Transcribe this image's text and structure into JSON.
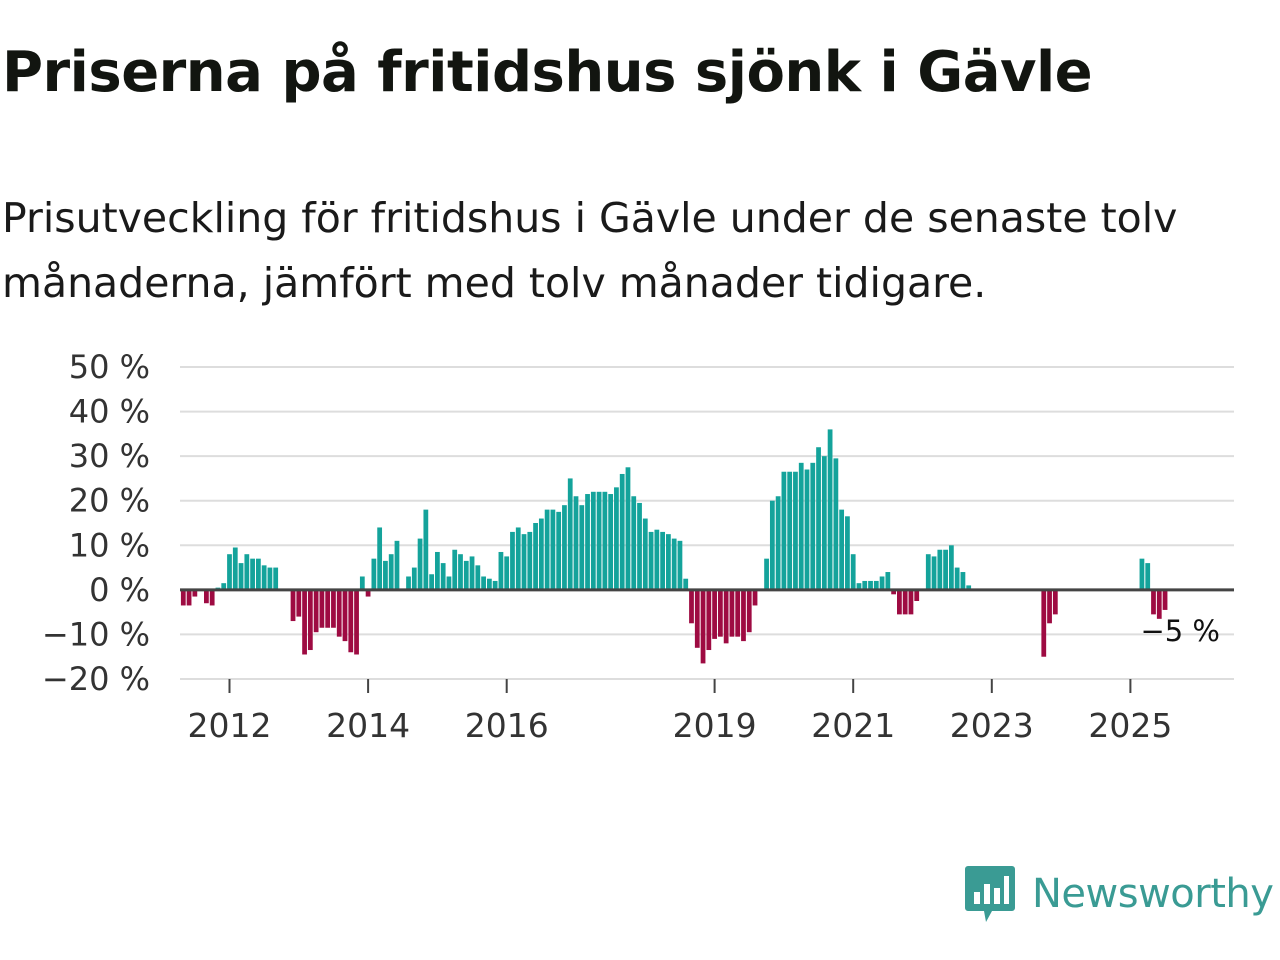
{
  "title": "Priserna på fritidshus sjönk i Gävle",
  "subtitle": "Prisutveckling för fritidshus i Gävle under de senaste tolv månaderna, jämfört med tolv månader tidigare.",
  "brand": {
    "name": "Newsworthy",
    "icon": "newsworthy-logo-icon"
  },
  "colors": {
    "positive": "#14a39b",
    "negative": "#9e0b42",
    "grid": "#dddddd",
    "axis": "#444444",
    "brand": "#3a9b94"
  },
  "chart_data": {
    "type": "bar",
    "title": "Priserna på fritidshus sjönk i Gävle",
    "xlabel": "",
    "ylabel": "",
    "ylim": [
      -20,
      50
    ],
    "yticks": [
      50,
      40,
      30,
      20,
      10,
      0,
      -10,
      -20
    ],
    "ytick_labels": [
      "50 %",
      "40 %",
      "30 %",
      "20 %",
      "10 %",
      "0 %",
      "−10 %",
      "−20 %"
    ],
    "xticks": [
      2012,
      2014,
      2016,
      2019,
      2021,
      2023,
      2025
    ],
    "x_start": "2011-04",
    "end_label": "−5 %",
    "values": [
      0,
      -3.5,
      -3.5,
      -1.5,
      0,
      -3,
      -3.5,
      0.5,
      1.5,
      8,
      9.5,
      6,
      8,
      7,
      7,
      5.5,
      5,
      5,
      0,
      0,
      -7,
      -6,
      -14.5,
      -13.5,
      -9.5,
      -8.5,
      -8.5,
      -8.5,
      -10.5,
      -11.5,
      -14,
      -14.5,
      3,
      -1.5,
      7,
      14,
      6.5,
      8,
      11,
      0,
      3,
      5,
      11.5,
      18,
      3.5,
      8.5,
      6,
      3,
      9,
      8,
      6.5,
      7.5,
      5.5,
      3,
      2.5,
      2,
      8.5,
      7.5,
      13,
      14,
      12.5,
      13,
      15,
      16,
      18,
      18,
      17.5,
      19,
      25,
      21,
      19,
      21.5,
      22,
      22,
      22,
      21.5,
      23,
      26,
      27.5,
      21,
      19.5,
      16,
      13,
      13.5,
      13,
      12.5,
      11.5,
      11,
      2.5,
      -7.5,
      -13,
      -16.5,
      -13.5,
      -11,
      -10.5,
      -12,
      -10.5,
      -10.5,
      -11.5,
      -9.5,
      -3.5,
      0,
      7,
      20,
      21,
      26.5,
      26.5,
      26.5,
      28.5,
      27,
      28.5,
      32,
      30,
      36,
      29.5,
      18,
      16.5,
      8,
      1.5,
      2,
      2,
      2,
      3,
      4,
      -1,
      -5.5,
      -5.5,
      -5.5,
      -2.5,
      0,
      8,
      7.5,
      9,
      9,
      10,
      5,
      4,
      1,
      0,
      0,
      0,
      0,
      0,
      0,
      0,
      0,
      0,
      0,
      0,
      0,
      -15,
      -7.5,
      -5.5,
      0,
      0,
      0,
      0,
      0,
      0,
      0,
      0,
      0,
      0,
      0,
      0,
      0,
      0,
      7,
      6,
      -5.5,
      -6.5,
      -4.5
    ]
  }
}
